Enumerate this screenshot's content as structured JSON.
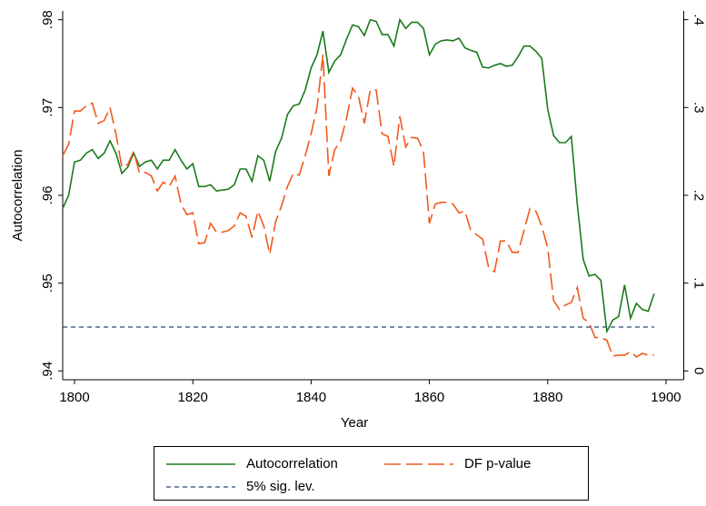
{
  "chart_data": {
    "type": "line",
    "x_label": "Year",
    "y_label": "Autocorrelation",
    "xlim": [
      1798,
      1903
    ],
    "xticks": [
      1800,
      1820,
      1840,
      1860,
      1880,
      1900
    ],
    "ylim": [
      0.939,
      0.981
    ],
    "yticks": [
      {
        "value": 0.94,
        "label": ".94"
      },
      {
        "value": 0.95,
        "label": ".95"
      },
      {
        "value": 0.96,
        "label": ".96"
      },
      {
        "value": 0.97,
        "label": ".97"
      },
      {
        "value": 0.98,
        "label": ".98"
      }
    ],
    "y2lim": [
      -0.01,
      0.41
    ],
    "y2ticks": [
      0,
      {
        "value": 0.1,
        "label": ".1"
      },
      {
        "value": 0.2,
        "label": ".2"
      },
      {
        "value": 0.3,
        "label": ".3"
      },
      {
        "value": 0.4,
        "label": ".4"
      }
    ],
    "x": [
      1798,
      1799,
      1800,
      1801,
      1802,
      1803,
      1804,
      1805,
      1806,
      1807,
      1808,
      1809,
      1810,
      1811,
      1812,
      1813,
      1814,
      1815,
      1816,
      1817,
      1818,
      1819,
      1820,
      1821,
      1822,
      1823,
      1824,
      1825,
      1826,
      1827,
      1828,
      1829,
      1830,
      1831,
      1832,
      1833,
      1834,
      1835,
      1836,
      1837,
      1838,
      1839,
      1840,
      1841,
      1842,
      1843,
      1844,
      1845,
      1846,
      1847,
      1848,
      1849,
      1850,
      1851,
      1852,
      1853,
      1854,
      1855,
      1856,
      1857,
      1858,
      1859,
      1860,
      1861,
      1862,
      1863,
      1864,
      1865,
      1866,
      1867,
      1868,
      1869,
      1870,
      1871,
      1872,
      1873,
      1874,
      1875,
      1876,
      1877,
      1878,
      1879,
      1880,
      1881,
      1882,
      1883,
      1884,
      1885,
      1886,
      1887,
      1888,
      1889,
      1890,
      1891,
      1892,
      1893,
      1894,
      1895,
      1896,
      1897,
      1898
    ],
    "series": [
      {
        "name": "Autocorrelation",
        "color": "#1a7a1a",
        "dash": "solid",
        "values": [
          0.9585,
          0.96,
          0.9638,
          0.964,
          0.9648,
          0.9652,
          0.9642,
          0.9648,
          0.9662,
          0.9648,
          0.9625,
          0.9632,
          0.9648,
          0.9633,
          0.9638,
          0.964,
          0.963,
          0.964,
          0.964,
          0.9652,
          0.964,
          0.963,
          0.9636,
          0.961,
          0.961,
          0.9612,
          0.9605,
          0.9606,
          0.9607,
          0.9612,
          0.963,
          0.963,
          0.9616,
          0.9645,
          0.964,
          0.9616,
          0.965,
          0.9665,
          0.9692,
          0.9702,
          0.9704,
          0.972,
          0.9745,
          0.976,
          0.9787,
          0.974,
          0.9753,
          0.976,
          0.9778,
          0.9794,
          0.9792,
          0.9782,
          0.98,
          0.9798,
          0.9783,
          0.9783,
          0.977,
          0.98,
          0.979,
          0.9797,
          0.9797,
          0.979,
          0.976,
          0.9772,
          0.9776,
          0.9777,
          0.9776,
          0.9779,
          0.9768,
          0.9765,
          0.9763,
          0.9746,
          0.9745,
          0.9748,
          0.975,
          0.9747,
          0.9748,
          0.9758,
          0.977,
          0.977,
          0.9764,
          0.9756,
          0.9698,
          0.9668,
          0.966,
          0.966,
          0.9667,
          0.959,
          0.9527,
          0.9508,
          0.951,
          0.9503,
          0.9445,
          0.9458,
          0.9462,
          0.9498,
          0.946,
          0.9477,
          0.947,
          0.9468,
          0.9488
        ]
      },
      {
        "name": "DF p-value",
        "color": "#f05a1e",
        "dash": "long-dash",
        "axis": "y2",
        "values": [
          0.245,
          0.258,
          0.296,
          0.296,
          0.302,
          0.305,
          0.282,
          0.285,
          0.3,
          0.27,
          0.232,
          0.235,
          0.25,
          0.225,
          0.226,
          0.222,
          0.205,
          0.215,
          0.21,
          0.222,
          0.19,
          0.178,
          0.18,
          0.145,
          0.146,
          0.168,
          0.158,
          0.158,
          0.16,
          0.165,
          0.18,
          0.176,
          0.152,
          0.182,
          0.165,
          0.133,
          0.17,
          0.188,
          0.21,
          0.225,
          0.223,
          0.245,
          0.27,
          0.3,
          0.36,
          0.222,
          0.252,
          0.262,
          0.288,
          0.322,
          0.313,
          0.282,
          0.32,
          0.32,
          0.27,
          0.267,
          0.233,
          0.29,
          0.255,
          0.266,
          0.265,
          0.25,
          0.168,
          0.19,
          0.192,
          0.192,
          0.19,
          0.18,
          0.182,
          0.16,
          0.155,
          0.15,
          0.118,
          0.113,
          0.148,
          0.148,
          0.135,
          0.135,
          0.16,
          0.185,
          0.182,
          0.165,
          0.14,
          0.08,
          0.07,
          0.075,
          0.078,
          0.095,
          0.06,
          0.055,
          0.038,
          0.038,
          0.035,
          0.017,
          0.018,
          0.018,
          0.022,
          0.016,
          0.02,
          0.018,
          0.018
        ]
      },
      {
        "name": "5% sig. lev.",
        "color": "#2c4770",
        "dash": "short-dash",
        "axis": "y2",
        "x": [
          1798,
          1898
        ],
        "values": [
          0.05,
          0.05
        ]
      }
    ]
  }
}
